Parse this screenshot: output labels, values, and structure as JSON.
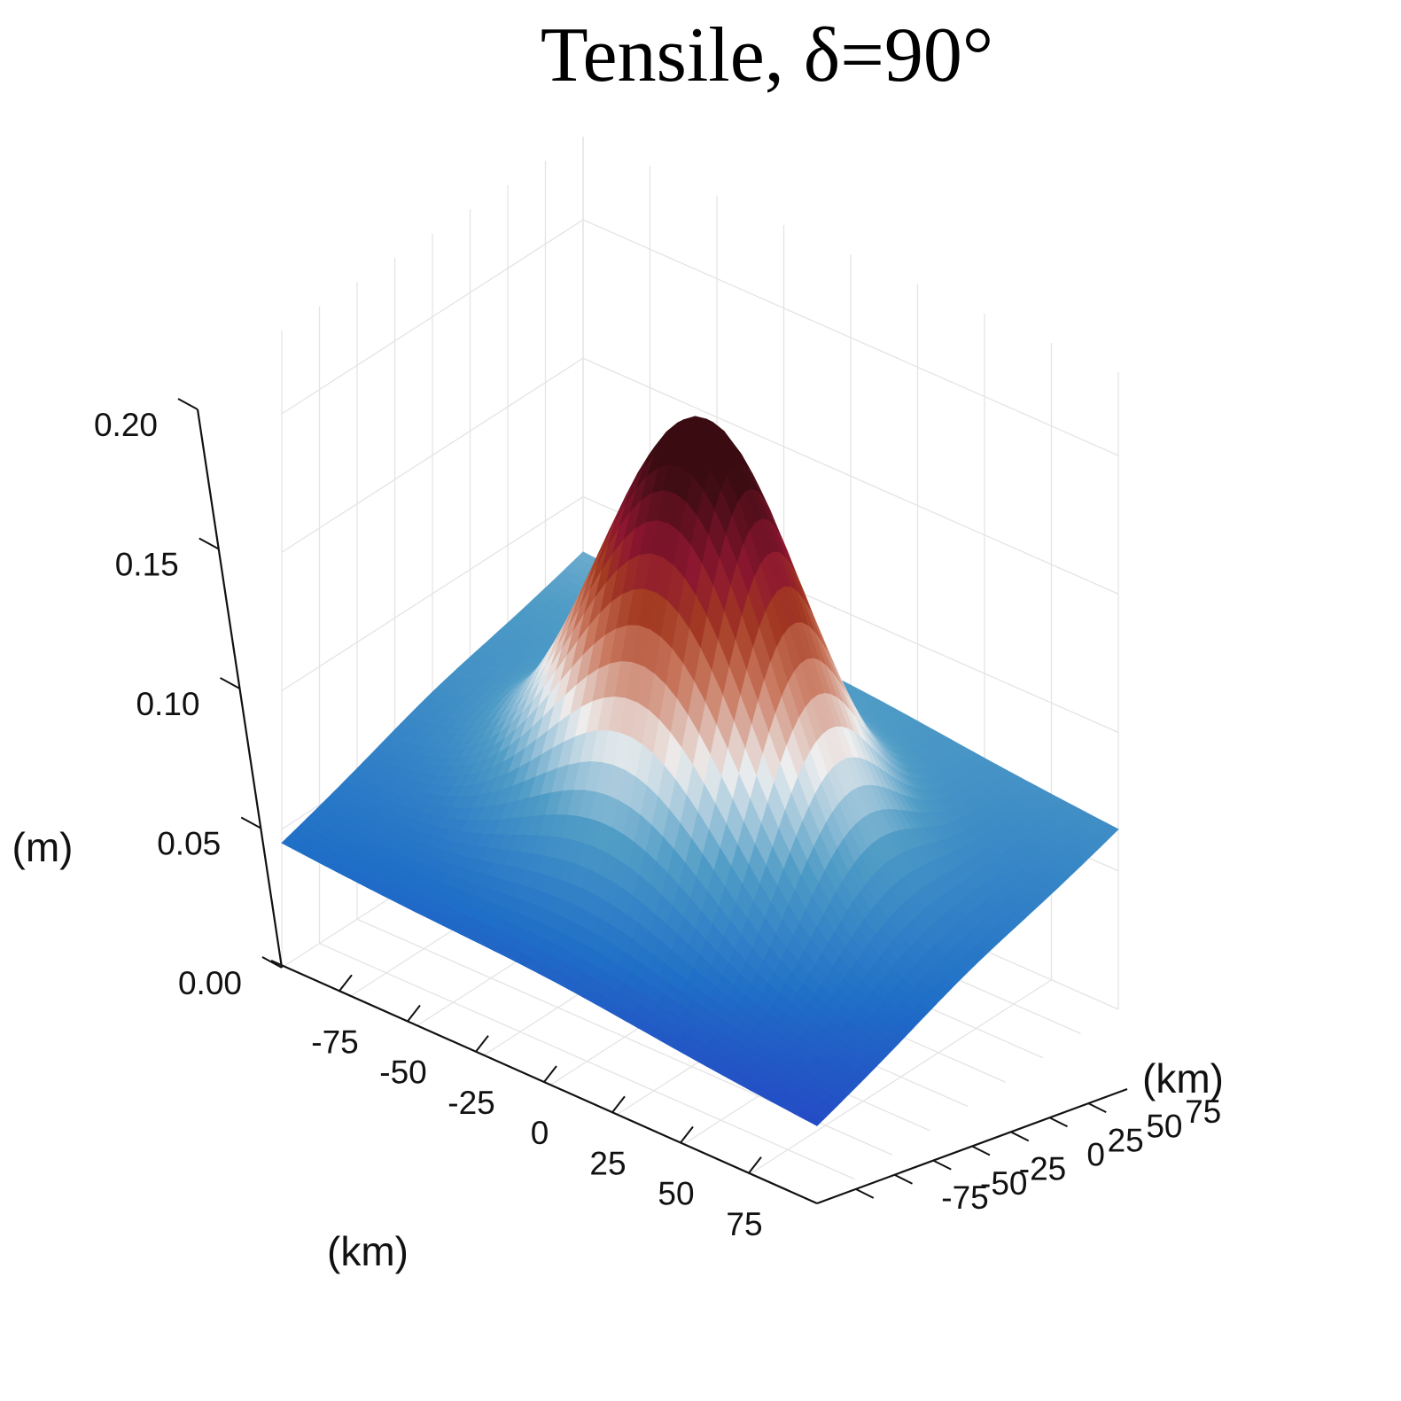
{
  "chart_data": {
    "type": "surface",
    "title": "Tensile, δ=90°",
    "xlabel": "(km)",
    "ylabel": "(km)",
    "zlabel": "(m)",
    "x_ticks": [
      "-75",
      "-50",
      "-25",
      "0",
      "25",
      "50",
      "75"
    ],
    "y_ticks": [
      "-75",
      "-50",
      "-25",
      "0",
      "25",
      "50",
      "75"
    ],
    "z_ticks": [
      "0.00",
      "0.05",
      "0.10",
      "0.15",
      "0.20"
    ],
    "xlim": [
      -100,
      100
    ],
    "ylim": [
      -100,
      100
    ],
    "zlim": [
      0,
      0.2
    ],
    "peak": {
      "x": 0,
      "y": 0,
      "z": 0.19
    },
    "corner_values": {
      "x_min_y_min": 0.045,
      "x_max_y_min": 0.028,
      "x_max_y_max": 0.065,
      "x_min_y_max": 0.08
    },
    "grid": true,
    "colormap": [
      "#2546c4",
      "#1f6fc7",
      "#4f9cc6",
      "#eeeeee",
      "#c9785e",
      "#a33a22",
      "#8c1630",
      "#3a0c12"
    ]
  }
}
